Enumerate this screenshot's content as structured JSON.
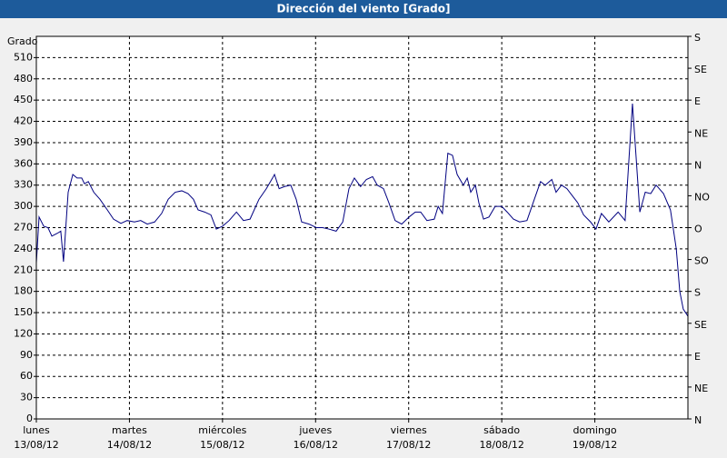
{
  "chart_data": {
    "type": "line",
    "title": "Dirección del viento [Grado]",
    "y_label": "Grado",
    "color": "#000080",
    "grid": true,
    "xlim": [
      0,
      168
    ],
    "xticks": [
      {
        "value": 0,
        "label": [
          "lunes",
          "13/08/12"
        ]
      },
      {
        "value": 24,
        "label": [
          "martes",
          "14/08/12"
        ]
      },
      {
        "value": 48,
        "label": [
          "miércoles",
          "15/08/12"
        ]
      },
      {
        "value": 72,
        "label": [
          "jueves",
          "16/08/12"
        ]
      },
      {
        "value": 96,
        "label": [
          "viernes",
          "17/08/12"
        ]
      },
      {
        "value": 120,
        "label": [
          "sábado",
          "18/08/12"
        ]
      },
      {
        "value": 144,
        "label": [
          "domingo",
          "19/08/12"
        ]
      }
    ],
    "ylim": [
      0,
      540
    ],
    "yticks": [
      0,
      30,
      60,
      90,
      120,
      150,
      180,
      210,
      240,
      270,
      300,
      330,
      360,
      390,
      420,
      450,
      480,
      510
    ],
    "y2lim": [
      0,
      540
    ],
    "y2ticks": [
      {
        "value": 0,
        "label": "N"
      },
      {
        "value": 45,
        "label": "NE"
      },
      {
        "value": 90,
        "label": "E"
      },
      {
        "value": 135,
        "label": "SE"
      },
      {
        "value": 180,
        "label": "S"
      },
      {
        "value": 225,
        "label": "SO"
      },
      {
        "value": 270,
        "label": "O"
      },
      {
        "value": 315,
        "label": "NO"
      },
      {
        "value": 360,
        "label": "N"
      },
      {
        "value": 405,
        "label": "NE"
      },
      {
        "value": 450,
        "label": "E"
      },
      {
        "value": 495,
        "label": "SE"
      },
      {
        "value": 540,
        "label": "S"
      }
    ],
    "x": [
      0,
      0.7,
      1.9,
      3.0,
      4.0,
      5.4,
      6.3,
      7.0,
      8.2,
      9.4,
      10.5,
      11.7,
      12.4,
      13.4,
      14.8,
      16.4,
      18.3,
      19.9,
      21.8,
      23.4,
      25.3,
      26.9,
      28.6,
      30.5,
      32.3,
      34.0,
      35.8,
      37.5,
      39.1,
      40.5,
      41.7,
      43.4,
      45.0,
      46.4,
      48.0,
      49.7,
      51.6,
      53.4,
      55.1,
      57.4,
      59.3,
      60.9,
      61.4,
      62.6,
      64.0,
      65.6,
      67.0,
      68.4,
      70.3,
      72.2,
      73.8,
      75.4,
      77.3,
      79.0,
      80.6,
      82.0,
      83.6,
      85.1,
      86.7,
      87.9,
      89.5,
      90.9,
      92.5,
      94.2,
      96.1,
      97.7,
      99.1,
      100.7,
      102.6,
      103.6,
      104.7,
      106.1,
      107.3,
      108.5,
      110.1,
      111.1,
      112.0,
      113.2,
      114.1,
      115.3,
      116.7,
      118.3,
      120.0,
      121.4,
      123.0,
      124.6,
      126.5,
      128.4,
      130.0,
      131.2,
      132.9,
      134.0,
      135.4,
      136.8,
      138.2,
      139.6,
      141.1,
      142.9,
      144.3,
      145.7,
      147.6,
      150.0,
      151.8,
      153.7,
      155.6,
      157.0,
      158.4,
      159.8,
      161.7,
      163.5,
      165.0,
      165.9,
      166.8,
      168.0
    ],
    "values": [
      220,
      285,
      272,
      270,
      258,
      262,
      265,
      222,
      320,
      345,
      340,
      340,
      332,
      335,
      320,
      310,
      295,
      282,
      276,
      280,
      278,
      280,
      275,
      278,
      290,
      310,
      320,
      322,
      318,
      310,
      295,
      292,
      288,
      268,
      272,
      280,
      292,
      280,
      282,
      310,
      325,
      340,
      345,
      325,
      328,
      330,
      310,
      278,
      275,
      270,
      270,
      268,
      265,
      278,
      325,
      340,
      328,
      338,
      342,
      330,
      325,
      305,
      280,
      275,
      285,
      292,
      292,
      280,
      282,
      300,
      290,
      375,
      372,
      345,
      330,
      340,
      320,
      330,
      305,
      282,
      285,
      300,
      300,
      292,
      282,
      278,
      280,
      310,
      335,
      330,
      338,
      320,
      330,
      325,
      315,
      305,
      288,
      278,
      268,
      290,
      278,
      292,
      280,
      445,
      292,
      320,
      318,
      330,
      318,
      295,
      240,
      180,
      155,
      145
    ]
  }
}
